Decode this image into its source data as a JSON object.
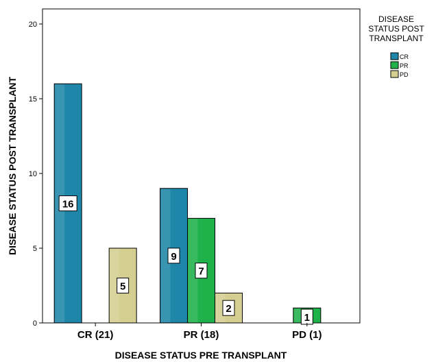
{
  "chart_data": {
    "type": "bar",
    "xlabel": "DISEASE STATUS PRE TRANSPLANT",
    "ylabel": "DISEASE STATUS POST TRANSPLANT",
    "categories": [
      "CR (21)",
      "PR (18)",
      "PD (1)"
    ],
    "series": [
      {
        "name": "CR",
        "color": "#1e86a8",
        "values": [
          16,
          9,
          null
        ]
      },
      {
        "name": "PR",
        "color": "#1fb14a",
        "values": [
          null,
          7,
          1
        ]
      },
      {
        "name": "PD",
        "color": "#d4cf91",
        "values": [
          5,
          2,
          null
        ]
      }
    ],
    "ylim": [
      0,
      20
    ],
    "yticks": [
      "0",
      "5",
      "10",
      "15",
      "20"
    ],
    "legend": {
      "title_lines": [
        "DISEASE",
        "STATUS POST",
        "TRANSPLANT"
      ],
      "position": "top-right"
    },
    "grid": false
  }
}
